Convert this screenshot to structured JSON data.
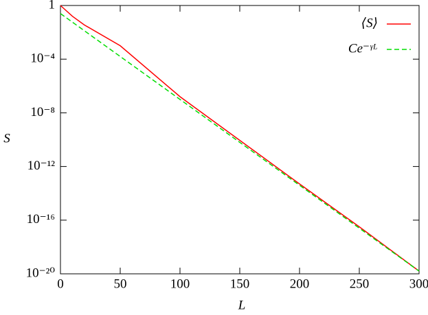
{
  "chart_data": {
    "type": "line",
    "x_label": "L",
    "y_label": "S",
    "log_y": true,
    "legend": "top-right",
    "xlim": [
      0,
      300
    ],
    "xticks": [
      0,
      50,
      100,
      150,
      200,
      250,
      300
    ],
    "ylim": [
      1e-20,
      1
    ],
    "yticks": [
      1,
      {
        "value": 0.0001,
        "label": "10⁻⁴"
      },
      {
        "value": 1e-08,
        "label": "10⁻⁸"
      },
      {
        "value": 1e-12,
        "label": "10⁻¹²"
      },
      {
        "value": 1e-16,
        "label": "10⁻¹⁶"
      },
      {
        "value": 1e-20,
        "label": "10⁻²⁰"
      }
    ],
    "series": [
      {
        "name": "⟨S⟩",
        "color": "#ff0000",
        "dash": false,
        "x": [
          0,
          10,
          20,
          50,
          100,
          150,
          200,
          250,
          300
        ],
        "values": [
          1,
          0.158,
          0.0355,
          0.001,
          1.6e-07,
          8.9e-11,
          5e-14,
          3.2e-17,
          1.6e-20
        ]
      },
      {
        "name": "Ce⁻ᵞᴸ",
        "color": "#00dd00",
        "dash": true,
        "x": [
          0,
          100,
          200,
          300
        ],
        "values": [
          0.25,
          1e-07,
          4e-14,
          1.6e-20
        ]
      }
    ]
  }
}
